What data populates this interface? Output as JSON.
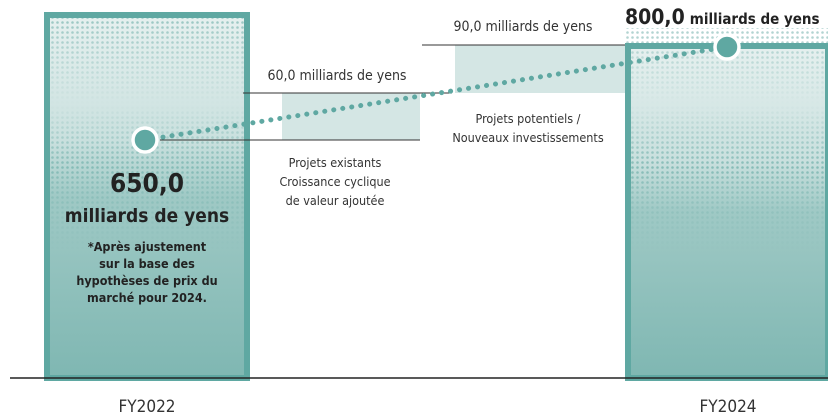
{
  "left_bar": {
    "value": "650,0",
    "unit": "milliards de yens",
    "note": [
      "*Après ajustement",
      "sur la base des",
      "hypothèses de prix du",
      "marché pour 2024."
    ],
    "label": "FY2022"
  },
  "right_bar": {
    "value": "800,0",
    "unit": "milliards de yens",
    "label": "FY2024"
  },
  "step_existing": {
    "amount": "60,0 milliards de yens",
    "description": [
      "Projets existants",
      "Croissance cyclique",
      "de valeur ajoutée"
    ]
  },
  "step_potential": {
    "amount": "90,0 milliards de yens",
    "description": [
      "Projets potentiels /",
      "Nouveaux investissements"
    ]
  }
}
